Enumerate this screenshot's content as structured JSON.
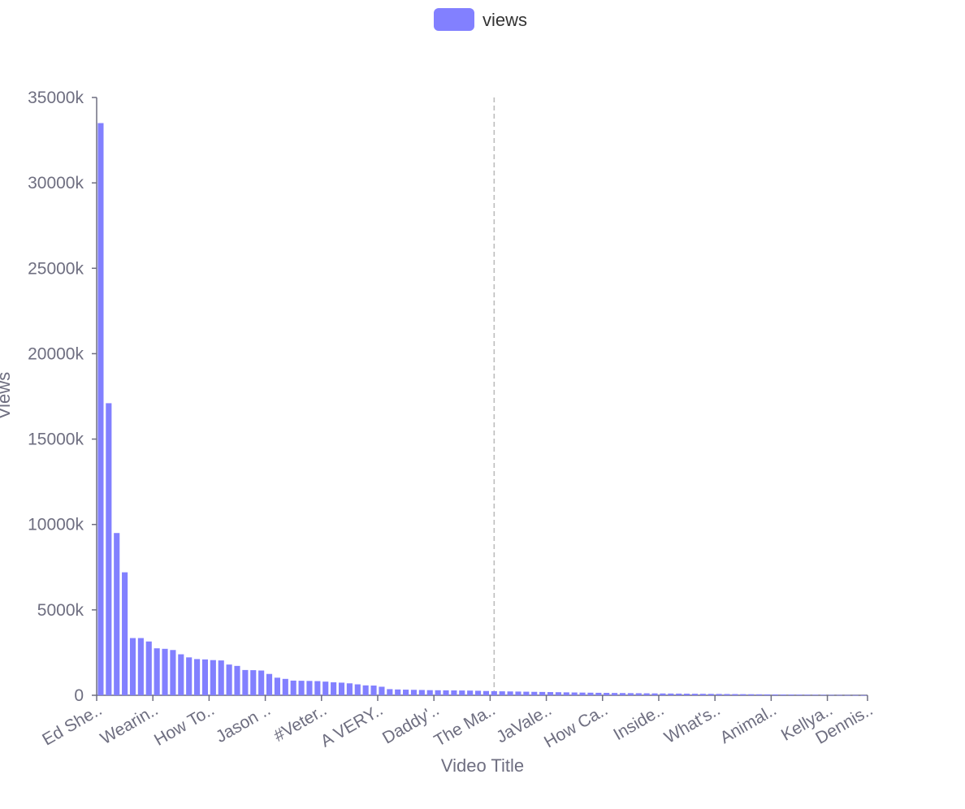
{
  "chart_data": {
    "type": "bar",
    "xlabel": "Video Title",
    "ylabel": "Views",
    "ylim": [
      0,
      35000
    ],
    "y_unit_suffix": "k",
    "y_ticks": [
      0,
      5000,
      10000,
      15000,
      20000,
      25000,
      30000,
      35000
    ],
    "x_tick_labels": [
      "Ed She..",
      "Wearin..",
      "How To..",
      "Jason ..",
      "#Veter..",
      "A VERY..",
      "Daddy'..",
      "The Ma..",
      "JaVale..",
      "How Ca..",
      "Inside..",
      "What's..",
      "Animal..",
      "Kellya..",
      "Dennis.."
    ],
    "x_tick_every": 7,
    "series": [
      {
        "name": "views",
        "color": "#8280ff",
        "values": [
          33500,
          17100,
          9500,
          7200,
          3350,
          3350,
          3150,
          2750,
          2720,
          2650,
          2400,
          2220,
          2120,
          2100,
          2060,
          2040,
          1800,
          1720,
          1480,
          1470,
          1450,
          1250,
          1030,
          960,
          860,
          850,
          840,
          830,
          800,
          760,
          740,
          700,
          640,
          580,
          570,
          500,
          360,
          340,
          330,
          320,
          310,
          300,
          295,
          290,
          285,
          280,
          275,
          265,
          250,
          240,
          232,
          225,
          218,
          210,
          202,
          195,
          188,
          180,
          172,
          165,
          158,
          152,
          146,
          140,
          135,
          130,
          125,
          120,
          115,
          110,
          106,
          102,
          98,
          94,
          90,
          86,
          82,
          78,
          74,
          70,
          66,
          62,
          58,
          54,
          50,
          46,
          42,
          38,
          34,
          30,
          26,
          22,
          18,
          14,
          10,
          7
        ]
      }
    ],
    "reference_line": {
      "style": "dashed",
      "color": "#bdbdbd",
      "bar_position": 49
    },
    "grid": false,
    "legend_position": "top-center"
  }
}
